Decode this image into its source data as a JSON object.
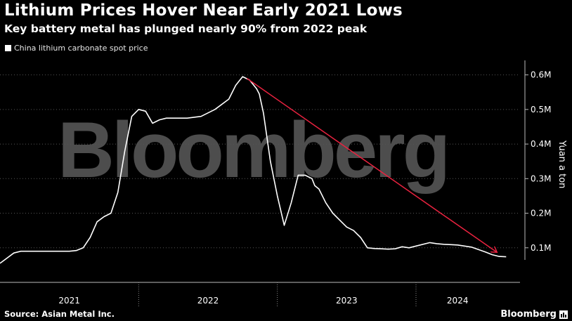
{
  "header": {
    "title": "Lithium Prices Hover Near Early 2021 Lows",
    "subtitle": "Key battery metal has plunged nearly 90% from 2022 peak"
  },
  "footer": {
    "source": "Source: Asian Metal Inc.",
    "brand": "Bloomberg"
  },
  "watermark": "Bloomberg",
  "colors": {
    "background": "#000000",
    "line": "#ffffff",
    "arrow": "#e8223f",
    "grid": "#555555"
  },
  "chart_data": {
    "type": "line",
    "title": "Lithium Prices Hover Near Early 2021 Lows",
    "subtitle": "Key battery metal has plunged nearly 90% from 2022 peak",
    "ylabel": "Yuan a ton",
    "xlabel": "",
    "ylim": [
      0,
      650000
    ],
    "xlim": [
      2021.0,
      2024.75
    ],
    "yticks": [
      100000,
      200000,
      300000,
      400000,
      500000,
      600000
    ],
    "ytick_labels": [
      "0.1M",
      "0.2M",
      "0.3M",
      "0.4M",
      "0.5M",
      "0.6M"
    ],
    "xtick_labels": [
      "2021",
      "2022",
      "2023",
      "2024"
    ],
    "xtick_positions": [
      2021.5,
      2022.5,
      2023.5,
      2024.3
    ],
    "grid": true,
    "legend_position": "top-left",
    "series": [
      {
        "name": "China lithium carbonate spot price",
        "color": "#ffffff",
        "x": [
          2021.0,
          2021.05,
          2021.1,
          2021.15,
          2021.25,
          2021.35,
          2021.45,
          2021.5,
          2021.55,
          2021.6,
          2021.65,
          2021.7,
          2021.75,
          2021.8,
          2021.85,
          2021.9,
          2021.95,
          2022.0,
          2022.05,
          2022.1,
          2022.15,
          2022.2,
          2022.25,
          2022.35,
          2022.45,
          2022.55,
          2022.65,
          2022.7,
          2022.75,
          2022.8,
          2022.85,
          2022.87,
          2022.9,
          2022.95,
          2023.0,
          2023.05,
          2023.1,
          2023.15,
          2023.2,
          2023.25,
          2023.27,
          2023.3,
          2023.35,
          2023.4,
          2023.45,
          2023.5,
          2023.55,
          2023.6,
          2023.65,
          2023.7,
          2023.75,
          2023.8,
          2023.85,
          2023.9,
          2023.95,
          2024.0,
          2024.1,
          2024.15,
          2024.2,
          2024.3,
          2024.4,
          2024.45,
          2024.5,
          2024.55,
          2024.6,
          2024.65
        ],
        "values": [
          55000,
          70000,
          85000,
          90000,
          90000,
          90000,
          90000,
          90000,
          92000,
          100000,
          130000,
          175000,
          190000,
          200000,
          260000,
          380000,
          480000,
          500000,
          495000,
          460000,
          470000,
          475000,
          475000,
          475000,
          480000,
          500000,
          530000,
          570000,
          595000,
          585000,
          560000,
          545000,
          490000,
          350000,
          250000,
          165000,
          230000,
          310000,
          310000,
          300000,
          280000,
          270000,
          230000,
          200000,
          180000,
          160000,
          150000,
          130000,
          100000,
          98000,
          97000,
          96000,
          97000,
          103000,
          100000,
          105000,
          115000,
          112000,
          110000,
          108000,
          102000,
          95000,
          88000,
          80000,
          75000,
          74000
        ]
      }
    ],
    "annotations": [
      {
        "type": "arrow",
        "color": "#e8223f",
        "x_start": 2022.78,
        "y_start": 590000,
        "x_end": 2024.58,
        "y_end": 88000
      }
    ]
  }
}
